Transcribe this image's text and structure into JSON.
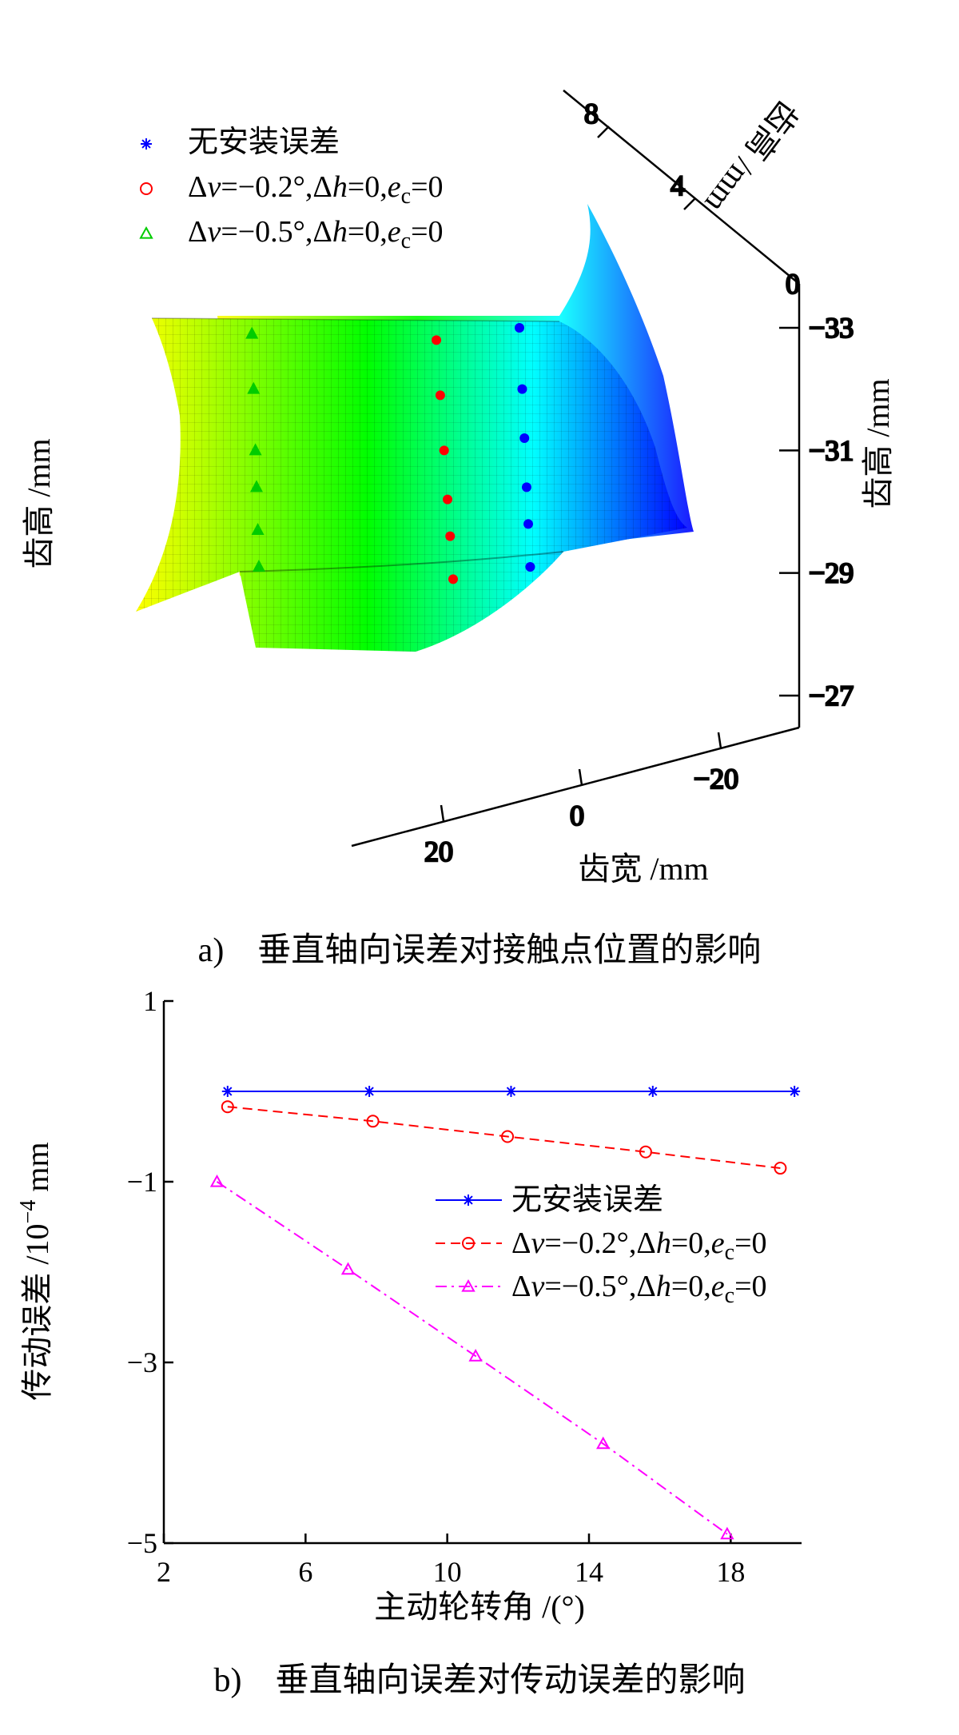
{
  "chart_data": [
    {
      "type": "surface3d",
      "caption": "a)　垂直轴向误差对接触点位置的影响",
      "axes": {
        "x": {
          "label": "齿宽 /mm",
          "ticks": [
            "20",
            "0",
            "−20"
          ]
        },
        "y": {
          "label": "齿高 /mm",
          "ticks": [
            "8",
            "4",
            "0"
          ]
        },
        "z": {
          "label": "齿高 /mm",
          "ticks": [
            "−33",
            "−31",
            "−29",
            "−27"
          ]
        }
      },
      "z_range": [
        -33,
        -27
      ],
      "colormap": [
        "#0000ff",
        "#00ffff",
        "#00ff00",
        "#ffff00"
      ],
      "legend": {
        "position": "top-left",
        "items": [
          {
            "marker": "*",
            "color": "#0000ff",
            "main": "无安装误差",
            "parts": []
          },
          {
            "marker": "o",
            "color": "#ff0000",
            "parts": [
              "Δ",
              "v",
              "=−0.2°,Δ",
              "h",
              "=0,",
              "e",
              "c",
              "=0"
            ]
          },
          {
            "marker": "△",
            "color": "#00cc00",
            "parts": [
              "Δ",
              "v",
              "=−0.5°,Δ",
              "h",
              "=0,",
              "e",
              "c",
              "=0"
            ]
          }
        ]
      },
      "series": [
        {
          "name": "无安装误差",
          "color": "#0000ff",
          "z": [
            -33.0,
            -32.0,
            -31.2,
            -30.4,
            -29.8,
            -29.1
          ]
        },
        {
          "name": "Δv=−0.2°,Δh=0,ec=0",
          "color": "#ff0000",
          "z": [
            -32.8,
            -31.9,
            -31.0,
            -30.2,
            -29.6,
            -28.9
          ]
        },
        {
          "name": "Δv=−0.5°,Δh=0,ec=0",
          "color": "#00cc00",
          "z": [
            -32.9,
            -32.0,
            -31.0,
            -30.4,
            -29.7,
            -29.1
          ]
        }
      ]
    },
    {
      "type": "line",
      "caption": "b)　垂直轴向误差对传动误差的影响",
      "xlabel": "主动轮转角 /(°)",
      "ylabel_parts": [
        "传动误差 /10",
        "−4",
        " mm"
      ],
      "xlim": [
        2,
        20
      ],
      "ylim": [
        -5,
        1
      ],
      "xticks": [
        2,
        6,
        10,
        14,
        18
      ],
      "yticks": [
        1,
        -1,
        -3,
        -5
      ],
      "legend": {
        "position": "center-right",
        "items": [
          {
            "marker": "*",
            "line": "solid",
            "color": "#0000ff",
            "parts": [
              "无安装误差"
            ]
          },
          {
            "marker": "o",
            "line": "dashed",
            "color": "#ff0000",
            "parts": [
              "Δ",
              "v",
              "=−0.2°,Δ",
              "h",
              "=0,",
              "e",
              "c",
              "=0"
            ]
          },
          {
            "marker": "△",
            "line": "dashdot",
            "color": "#ff00ff",
            "parts": [
              "Δ",
              "v",
              "=−0.5°,Δ",
              "h",
              "=0,",
              "e",
              "c",
              "=0"
            ]
          }
        ]
      },
      "series": [
        {
          "name": "无安装误差",
          "color": "#0000ff",
          "style": "solid",
          "marker": "star",
          "x": [
            3.8,
            7.8,
            11.8,
            15.8,
            19.8
          ],
          "y": [
            0.0,
            0.0,
            0.0,
            0.0,
            0.0
          ]
        },
        {
          "name": "Δv=−0.2°,Δh=0,ec=0",
          "color": "#ff0000",
          "style": "dashed",
          "marker": "circle",
          "x": [
            3.8,
            7.9,
            11.7,
            15.6,
            19.4
          ],
          "y": [
            -0.17,
            -0.33,
            -0.5,
            -0.67,
            -0.85
          ]
        },
        {
          "name": "Δv=−0.5°,Δh=0,ec=0",
          "color": "#ff00ff",
          "style": "dashdot",
          "marker": "triangle",
          "x": [
            3.5,
            7.2,
            10.8,
            14.4,
            17.9
          ],
          "y": [
            -1.0,
            -1.97,
            -2.93,
            -3.9,
            -4.9
          ]
        }
      ]
    }
  ]
}
